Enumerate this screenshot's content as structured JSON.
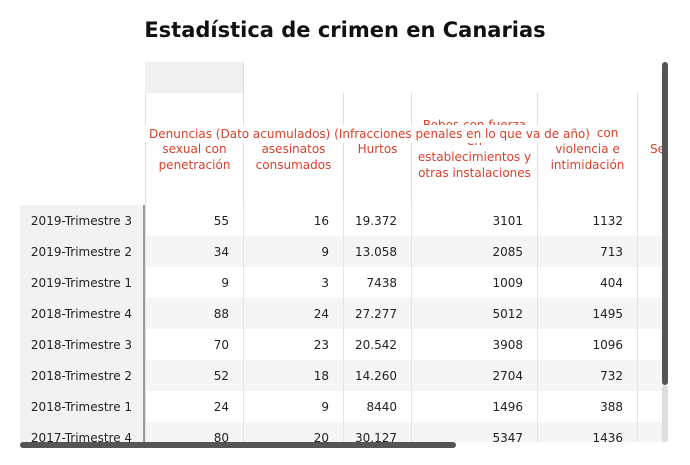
{
  "header": {
    "title": "Estadística de crimen en Canarias"
  },
  "table": {
    "columns": [
      "Agresión sexual con penetración",
      "Homicidios y asesinatos consumados",
      "Hurtos",
      "Robos con fuerza en establecimientos y otras instalaciones",
      "Robos con violencia e intimidación",
      "Se"
    ],
    "rows": [
      [
        "2019-Trimestre 3",
        "55",
        "16",
        "19.372",
        "3101",
        "1132"
      ],
      [
        "2019-Trimestre 2",
        "34",
        "9",
        "13.058",
        "2085",
        "713"
      ],
      [
        "2019-Trimestre 1",
        "9",
        "3",
        "7438",
        "1009",
        "404"
      ],
      [
        "2018-Trimestre 4",
        "88",
        "24",
        "27.277",
        "5012",
        "1495"
      ],
      [
        "2018-Trimestre 3",
        "70",
        "23",
        "20.542",
        "3908",
        "1096"
      ],
      [
        "2018-Trimestre 2",
        "52",
        "18",
        "14.260",
        "2704",
        "732"
      ],
      [
        "2018-Trimestre 1",
        "24",
        "9",
        "8440",
        "1496",
        "388"
      ],
      [
        "2017-Trimestre 4",
        "80",
        "20",
        "30.127",
        "5347",
        "1436"
      ]
    ],
    "tooltip": "Denuncias (Dato acumulados) (Infracciones penales en lo que va de año)"
  }
}
